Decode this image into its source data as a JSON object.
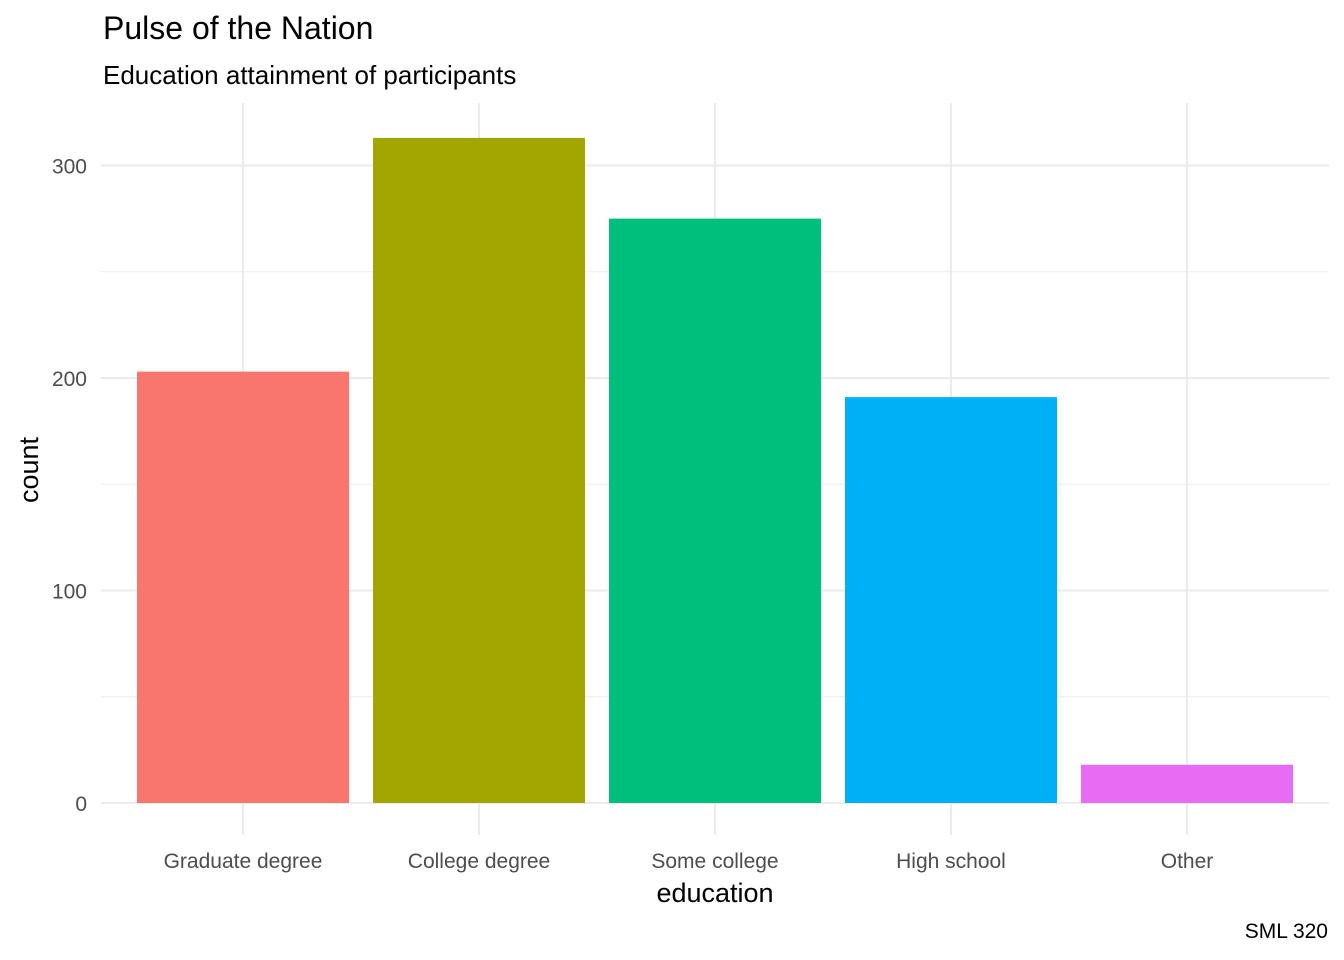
{
  "chart_data": {
    "type": "bar",
    "title": "Pulse of the Nation",
    "subtitle": "Education attainment of participants",
    "caption": "SML 320",
    "xlabel": "education",
    "ylabel": "count",
    "categories": [
      "Graduate degree",
      "College degree",
      "Some college",
      "High school",
      "Other"
    ],
    "values": [
      203,
      313,
      275,
      191,
      18
    ],
    "colors": [
      "#F8766D",
      "#A3A500",
      "#00BF7D",
      "#00B0F6",
      "#E76BF3"
    ],
    "ylim": [
      0,
      328
    ],
    "yticks": [
      0,
      100,
      200,
      300
    ],
    "grid": true,
    "legend": "none"
  }
}
